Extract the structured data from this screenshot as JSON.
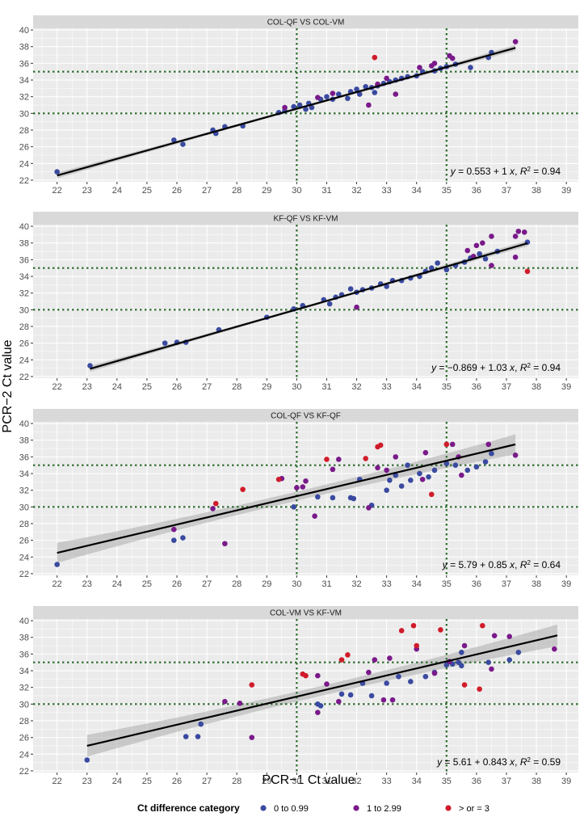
{
  "figure": {
    "xlabel": "PCR−1 Ct value",
    "ylabel": "PCR−2 Ct value"
  },
  "legend": {
    "title": "Ct difference category",
    "items": [
      {
        "key": "a",
        "label": "0 to 0.99",
        "color": "#3a4aa0"
      },
      {
        "key": "b",
        "label": "1 to 2.99",
        "color": "#7a1a8a"
      },
      {
        "key": "c",
        "label": "> or = 3",
        "color": "#d01c2a"
      }
    ]
  },
  "colors": {
    "panel_bg": "#ebebeb",
    "strip_bg": "#d9d9d9",
    "grid": "#ffffff",
    "ref_line": "#2e6b2e",
    "fit_line": "#000000",
    "ribbon": "#a6a6a6"
  },
  "chart_data": [
    {
      "type": "scatter",
      "title": "COL-QF VS COL-VM",
      "equation": {
        "intercept": "0.553",
        "slope": "1",
        "r2": "0.94"
      },
      "xlim": [
        21.2,
        39.4
      ],
      "ylim": [
        21.8,
        40.2
      ],
      "x_ticks": [
        22,
        23,
        24,
        25,
        26,
        27,
        28,
        29,
        30,
        31,
        32,
        33,
        34,
        35,
        36,
        37,
        38,
        39
      ],
      "y_ticks": [
        22,
        24,
        26,
        28,
        30,
        32,
        34,
        36,
        38,
        40
      ],
      "ref_x": [
        30,
        35
      ],
      "ref_y": [
        30,
        35
      ],
      "fit": {
        "intercept": 0.553,
        "slope": 1.0,
        "x_range": [
          22,
          37.3
        ],
        "band": 0.35
      },
      "points": [
        [
          22,
          23,
          "a"
        ],
        [
          25.9,
          26.8,
          "a"
        ],
        [
          26.2,
          26.3,
          "a"
        ],
        [
          27.2,
          28,
          "a"
        ],
        [
          27.3,
          27.6,
          "a"
        ],
        [
          27.6,
          28.4,
          "a"
        ],
        [
          28.2,
          28.5,
          "a"
        ],
        [
          29.4,
          30.1,
          "a"
        ],
        [
          29.6,
          30.3,
          "a"
        ],
        [
          29.9,
          30.8,
          "a"
        ],
        [
          30.1,
          31,
          "a"
        ],
        [
          30.3,
          30.5,
          "a"
        ],
        [
          30.4,
          31.2,
          "a"
        ],
        [
          30.5,
          30.7,
          "a"
        ],
        [
          30.8,
          31.7,
          "a"
        ],
        [
          31,
          32,
          "a"
        ],
        [
          31.2,
          31.7,
          "a"
        ],
        [
          31.4,
          32.3,
          "a"
        ],
        [
          31.7,
          31.8,
          "a"
        ],
        [
          31.8,
          32.6,
          "a"
        ],
        [
          32,
          32.9,
          "a"
        ],
        [
          32.1,
          32.3,
          "a"
        ],
        [
          32.3,
          33.2,
          "a"
        ],
        [
          32.5,
          33.1,
          "a"
        ],
        [
          32.6,
          32.5,
          "a"
        ],
        [
          32.7,
          33.3,
          "a"
        ],
        [
          32.9,
          33.6,
          "a"
        ],
        [
          33.1,
          33.8,
          "a"
        ],
        [
          33.3,
          34,
          "a"
        ],
        [
          33.5,
          34.2,
          "a"
        ],
        [
          33.7,
          34.4,
          "a"
        ],
        [
          34,
          34.5,
          "a"
        ],
        [
          34.2,
          35,
          "a"
        ],
        [
          34.6,
          35.1,
          "a"
        ],
        [
          34.8,
          35.4,
          "a"
        ],
        [
          35,
          35.6,
          "a"
        ],
        [
          35.3,
          35.9,
          "a"
        ],
        [
          35.8,
          35.5,
          "a"
        ],
        [
          36.4,
          36.7,
          "a"
        ],
        [
          36.5,
          37.3,
          "a"
        ],
        [
          29.6,
          30.7,
          "b"
        ],
        [
          30.7,
          31.9,
          "b"
        ],
        [
          31.2,
          32.4,
          "b"
        ],
        [
          32.4,
          31,
          "b"
        ],
        [
          32.7,
          33.5,
          "b"
        ],
        [
          33,
          34.2,
          "b"
        ],
        [
          33.3,
          32.3,
          "b"
        ],
        [
          34.1,
          35.5,
          "b"
        ],
        [
          34.5,
          35.7,
          "b"
        ],
        [
          34.6,
          36,
          "b"
        ],
        [
          35.1,
          36.9,
          "b"
        ],
        [
          35.2,
          36.6,
          "b"
        ],
        [
          37.3,
          38.6,
          "b"
        ],
        [
          32.6,
          36.7,
          "c"
        ]
      ]
    },
    {
      "type": "scatter",
      "title": "KF-QF VS KF-VM",
      "equation": {
        "intercept": "−0.869",
        "slope": "1.03",
        "r2": "0.94"
      },
      "xlim": [
        21.2,
        39.4
      ],
      "ylim": [
        21.8,
        40.2
      ],
      "x_ticks": [
        22,
        23,
        24,
        25,
        26,
        27,
        28,
        29,
        30,
        31,
        32,
        33,
        34,
        35,
        36,
        37,
        38,
        39
      ],
      "y_ticks": [
        22,
        24,
        26,
        28,
        30,
        32,
        34,
        36,
        38,
        40
      ],
      "ref_x": [
        30,
        35
      ],
      "ref_y": [
        30,
        35
      ],
      "fit": {
        "intercept": -0.869,
        "slope": 1.03,
        "x_range": [
          23.1,
          37.7
        ],
        "band": 0.35
      },
      "points": [
        [
          23.1,
          23.3,
          "a"
        ],
        [
          25.6,
          26,
          "a"
        ],
        [
          26,
          26.1,
          "a"
        ],
        [
          26.3,
          26.1,
          "a"
        ],
        [
          27.4,
          27.6,
          "a"
        ],
        [
          29,
          29.1,
          "a"
        ],
        [
          29.9,
          30.1,
          "a"
        ],
        [
          30.2,
          30.5,
          "a"
        ],
        [
          30.9,
          31.2,
          "a"
        ],
        [
          31.1,
          30.7,
          "a"
        ],
        [
          31.3,
          31.5,
          "a"
        ],
        [
          31.5,
          31.8,
          "a"
        ],
        [
          31.8,
          32.5,
          "a"
        ],
        [
          32,
          32.1,
          "a"
        ],
        [
          32.2,
          32.4,
          "a"
        ],
        [
          32.5,
          32.6,
          "a"
        ],
        [
          32.8,
          33.1,
          "a"
        ],
        [
          33,
          32.8,
          "a"
        ],
        [
          33.2,
          33.5,
          "a"
        ],
        [
          33.5,
          33.5,
          "a"
        ],
        [
          33.8,
          33.8,
          "a"
        ],
        [
          34.1,
          34,
          "a"
        ],
        [
          34.3,
          34.6,
          "a"
        ],
        [
          34.5,
          35,
          "a"
        ],
        [
          34.7,
          35.6,
          "a"
        ],
        [
          35,
          34.8,
          "a"
        ],
        [
          35.3,
          35.3,
          "a"
        ],
        [
          35.6,
          35.7,
          "a"
        ],
        [
          35.8,
          36.2,
          "a"
        ],
        [
          36.1,
          36.7,
          "a"
        ],
        [
          36.3,
          36.1,
          "a"
        ],
        [
          36.7,
          37,
          "a"
        ],
        [
          37.7,
          38.1,
          "a"
        ],
        [
          32,
          30.3,
          "b"
        ],
        [
          35.7,
          37.1,
          "b"
        ],
        [
          35.9,
          36.4,
          "b"
        ],
        [
          36,
          37.7,
          "b"
        ],
        [
          36.2,
          38,
          "b"
        ],
        [
          36.5,
          38.8,
          "b"
        ],
        [
          37.3,
          38.8,
          "b"
        ],
        [
          37.4,
          39.4,
          "b"
        ],
        [
          37.6,
          39.3,
          "b"
        ],
        [
          37.3,
          36.3,
          "b"
        ],
        [
          36.5,
          35.3,
          "b"
        ],
        [
          37.7,
          34.6,
          "c"
        ]
      ]
    },
    {
      "type": "scatter",
      "title": "COL-QF VS KF-QF",
      "equation": {
        "intercept": "5.79",
        "slope": "0.85",
        "r2": "0.64"
      },
      "xlim": [
        21.2,
        39.4
      ],
      "ylim": [
        21.8,
        40.2
      ],
      "x_ticks": [
        22,
        23,
        24,
        25,
        26,
        27,
        28,
        29,
        30,
        31,
        32,
        33,
        34,
        35,
        36,
        37,
        38,
        39
      ],
      "y_ticks": [
        22,
        24,
        26,
        28,
        30,
        32,
        34,
        36,
        38,
        40
      ],
      "ref_x": [
        30,
        35
      ],
      "ref_y": [
        30,
        35
      ],
      "fit": {
        "intercept": 5.79,
        "slope": 0.85,
        "x_range": [
          22,
          37.3
        ],
        "band": 1.2
      },
      "points": [
        [
          22,
          23.1,
          "a"
        ],
        [
          25.9,
          26,
          "a"
        ],
        [
          26.2,
          26.3,
          "a"
        ],
        [
          29.9,
          30,
          "a"
        ],
        [
          30.7,
          31.2,
          "a"
        ],
        [
          31.2,
          31.1,
          "a"
        ],
        [
          31.8,
          31.1,
          "a"
        ],
        [
          31.9,
          31,
          "a"
        ],
        [
          32.1,
          33.3,
          "a"
        ],
        [
          32.5,
          30.2,
          "a"
        ],
        [
          33,
          32,
          "a"
        ],
        [
          33.1,
          33.2,
          "a"
        ],
        [
          33.3,
          33.8,
          "a"
        ],
        [
          33.5,
          32.5,
          "a"
        ],
        [
          33.8,
          33.2,
          "a"
        ],
        [
          34.1,
          34,
          "a"
        ],
        [
          34.4,
          33.6,
          "a"
        ],
        [
          34.6,
          34.4,
          "a"
        ],
        [
          35,
          35.2,
          "a"
        ],
        [
          35.3,
          35,
          "a"
        ],
        [
          35.7,
          34.4,
          "a"
        ],
        [
          36,
          34.8,
          "a"
        ],
        [
          36.3,
          35.4,
          "a"
        ],
        [
          36.5,
          36.4,
          "a"
        ],
        [
          33.7,
          35,
          "a"
        ],
        [
          25.9,
          27.3,
          "b"
        ],
        [
          27.2,
          29.8,
          "b"
        ],
        [
          27.6,
          25.6,
          "b"
        ],
        [
          29.5,
          33.4,
          "b"
        ],
        [
          30,
          32.3,
          "b"
        ],
        [
          30.2,
          32.4,
          "b"
        ],
        [
          30.3,
          33.1,
          "b"
        ],
        [
          30.6,
          28.9,
          "b"
        ],
        [
          31.2,
          34.5,
          "b"
        ],
        [
          31.4,
          35.7,
          "b"
        ],
        [
          32.4,
          29.9,
          "b"
        ],
        [
          32.7,
          34.7,
          "b"
        ],
        [
          33,
          34.4,
          "b"
        ],
        [
          33.3,
          36,
          "b"
        ],
        [
          34.2,
          33.3,
          "b"
        ],
        [
          34.3,
          36.5,
          "b"
        ],
        [
          35.4,
          36,
          "b"
        ],
        [
          35.5,
          33.8,
          "b"
        ],
        [
          36.4,
          37.5,
          "b"
        ],
        [
          37.3,
          36.2,
          "b"
        ],
        [
          35.2,
          37.5,
          "b"
        ],
        [
          27.3,
          30.4,
          "c"
        ],
        [
          28.2,
          32.1,
          "c"
        ],
        [
          29.4,
          33.3,
          "c"
        ],
        [
          31,
          35.7,
          "c"
        ],
        [
          32.3,
          35.8,
          "c"
        ],
        [
          32.7,
          37.2,
          "c"
        ],
        [
          32.8,
          37.4,
          "c"
        ],
        [
          34.5,
          31.5,
          "c"
        ],
        [
          35,
          37.5,
          "c"
        ]
      ]
    },
    {
      "type": "scatter",
      "title": "COL-VM VS KF-VM",
      "equation": {
        "intercept": "5.61",
        "slope": "0.843",
        "r2": "0.59"
      },
      "xlim": [
        21.2,
        39.4
      ],
      "ylim": [
        21.8,
        40.2
      ],
      "x_ticks": [
        22,
        23,
        24,
        25,
        26,
        27,
        28,
        29,
        30,
        31,
        32,
        33,
        34,
        35,
        36,
        37,
        38,
        39
      ],
      "y_ticks": [
        22,
        24,
        26,
        28,
        30,
        32,
        34,
        36,
        38,
        40
      ],
      "ref_x": [
        30,
        35
      ],
      "ref_y": [
        30,
        35
      ],
      "fit": {
        "intercept": 5.61,
        "slope": 0.843,
        "x_range": [
          23,
          38.7
        ],
        "band": 1.3
      },
      "points": [
        [
          23,
          23.3,
          "a"
        ],
        [
          26.3,
          26.1,
          "a"
        ],
        [
          26.7,
          26.1,
          "a"
        ],
        [
          26.8,
          27.6,
          "a"
        ],
        [
          30.7,
          30,
          "a"
        ],
        [
          30.8,
          29.8,
          "a"
        ],
        [
          31.5,
          31.2,
          "a"
        ],
        [
          31.8,
          31.1,
          "a"
        ],
        [
          32.2,
          32.5,
          "a"
        ],
        [
          32.5,
          31,
          "a"
        ],
        [
          33,
          32.5,
          "a"
        ],
        [
          33.4,
          33.3,
          "a"
        ],
        [
          33.8,
          32.7,
          "a"
        ],
        [
          34.3,
          33.3,
          "a"
        ],
        [
          34.6,
          33.8,
          "a"
        ],
        [
          35,
          34.7,
          "a"
        ],
        [
          35.2,
          34.8,
          "a"
        ],
        [
          35.4,
          35,
          "a"
        ],
        [
          35.5,
          34.6,
          "a"
        ],
        [
          35.5,
          36.2,
          "a"
        ],
        [
          36.4,
          35,
          "a"
        ],
        [
          37.1,
          35.3,
          "a"
        ],
        [
          37.4,
          36.2,
          "a"
        ],
        [
          27.6,
          30.3,
          "b"
        ],
        [
          28.1,
          30.1,
          "b"
        ],
        [
          28.5,
          26,
          "b"
        ],
        [
          30.7,
          33.4,
          "b"
        ],
        [
          30.7,
          29,
          "b"
        ],
        [
          31,
          32.4,
          "b"
        ],
        [
          31.4,
          30.3,
          "b"
        ],
        [
          32.4,
          33.8,
          "b"
        ],
        [
          32.6,
          35.3,
          "b"
        ],
        [
          32.9,
          30.5,
          "b"
        ],
        [
          33.1,
          35.5,
          "b"
        ],
        [
          33.2,
          30.5,
          "b"
        ],
        [
          34,
          36.6,
          "b"
        ],
        [
          34.6,
          33.7,
          "b"
        ],
        [
          35.1,
          35.1,
          "b"
        ],
        [
          35.6,
          37,
          "b"
        ],
        [
          36.5,
          34.2,
          "b"
        ],
        [
          36.6,
          38.2,
          "b"
        ],
        [
          37.1,
          38.1,
          "b"
        ],
        [
          38.6,
          36.6,
          "b"
        ],
        [
          28.5,
          32.3,
          "c"
        ],
        [
          30.2,
          33.6,
          "c"
        ],
        [
          30.3,
          33.4,
          "c"
        ],
        [
          31.5,
          35.3,
          "c"
        ],
        [
          31.7,
          35.9,
          "c"
        ],
        [
          33.5,
          38.8,
          "c"
        ],
        [
          33.9,
          39.4,
          "c"
        ],
        [
          34,
          37,
          "c"
        ],
        [
          34.8,
          38.9,
          "c"
        ],
        [
          35.6,
          32.3,
          "c"
        ],
        [
          36.1,
          31.8,
          "c"
        ],
        [
          36.2,
          39.4,
          "c"
        ]
      ]
    }
  ]
}
